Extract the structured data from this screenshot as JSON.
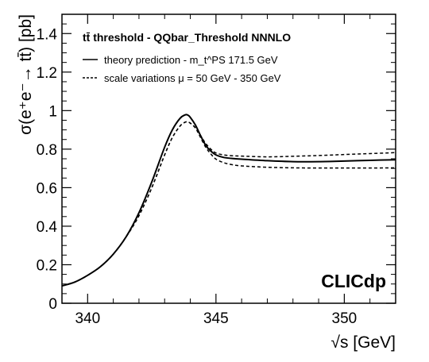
{
  "chart_data": {
    "type": "line",
    "xlabel": "√s [GeV]",
    "ylabel": "σ(e⁺e⁻→ tt̄) [pb]",
    "xlim": [
      339,
      352
    ],
    "ylim": [
      0,
      1.5
    ],
    "x_ticks": [
      340,
      345,
      350
    ],
    "y_ticks": [
      0,
      0.2,
      0.4,
      0.6,
      0.8,
      1,
      1.2,
      1.4
    ],
    "grid": false,
    "legend": {
      "placement": "top-left",
      "header": "tt̄ threshold - QQbar_Threshold NNNLO",
      "entries": [
        "theory prediction - m_t^PS 171.5 GeV",
        "scale variations μ = 50 GeV - 350 GeV"
      ]
    },
    "annotation": "CLICdp",
    "series": [
      {
        "name": "theory prediction - m_t^PS 171.5 GeV",
        "style": "solid",
        "x": [
          339.0,
          339.5,
          340.0,
          340.5,
          341.0,
          341.5,
          342.0,
          342.5,
          343.0,
          343.3,
          343.6,
          343.8,
          343.9,
          344.0,
          344.2,
          344.4,
          344.6,
          344.8,
          345.0,
          345.3,
          345.6,
          346.0,
          347.0,
          348.0,
          349.0,
          350.0,
          351.0,
          352.0
        ],
        "y": [
          0.09,
          0.11,
          0.145,
          0.19,
          0.255,
          0.345,
          0.47,
          0.63,
          0.81,
          0.9,
          0.96,
          0.978,
          0.977,
          0.965,
          0.925,
          0.87,
          0.82,
          0.79,
          0.77,
          0.757,
          0.752,
          0.748,
          0.74,
          0.735,
          0.735,
          0.738,
          0.742,
          0.745
        ]
      },
      {
        "name": "scale variations μ = 50 GeV - 350 GeV",
        "style": "dashed",
        "x": [
          339.0,
          339.5,
          340.0,
          340.5,
          341.0,
          341.5,
          342.0,
          342.5,
          343.0,
          343.3,
          343.6,
          343.8,
          343.9,
          344.0,
          344.2,
          344.4,
          344.6,
          344.8,
          345.0,
          345.3,
          345.6,
          346.0,
          347.0,
          348.0,
          349.0,
          350.0,
          351.0,
          352.0
        ],
        "y": [
          0.09,
          0.11,
          0.145,
          0.19,
          0.255,
          0.345,
          0.455,
          0.6,
          0.77,
          0.86,
          0.92,
          0.94,
          0.94,
          0.935,
          0.91,
          0.87,
          0.83,
          0.8,
          0.78,
          0.77,
          0.766,
          0.764,
          0.76,
          0.763,
          0.767,
          0.772,
          0.777,
          0.782
        ]
      },
      {
        "name": "",
        "style": "dashed",
        "x": [
          339.0,
          339.5,
          340.0,
          340.5,
          341.0,
          341.5,
          342.0,
          342.5,
          343.0,
          343.3,
          343.6,
          343.8,
          343.9,
          344.0,
          344.2,
          344.4,
          344.6,
          344.8,
          345.0,
          345.3,
          345.6,
          346.0,
          347.0,
          348.0,
          349.0,
          350.0,
          351.0,
          352.0
        ],
        "y": [
          0.09,
          0.11,
          0.145,
          0.19,
          0.255,
          0.345,
          0.455,
          0.6,
          0.77,
          0.86,
          0.92,
          0.94,
          0.94,
          0.935,
          0.91,
          0.86,
          0.81,
          0.775,
          0.748,
          0.73,
          0.72,
          0.713,
          0.706,
          0.703,
          0.702,
          0.702,
          0.702,
          0.703
        ]
      }
    ]
  }
}
